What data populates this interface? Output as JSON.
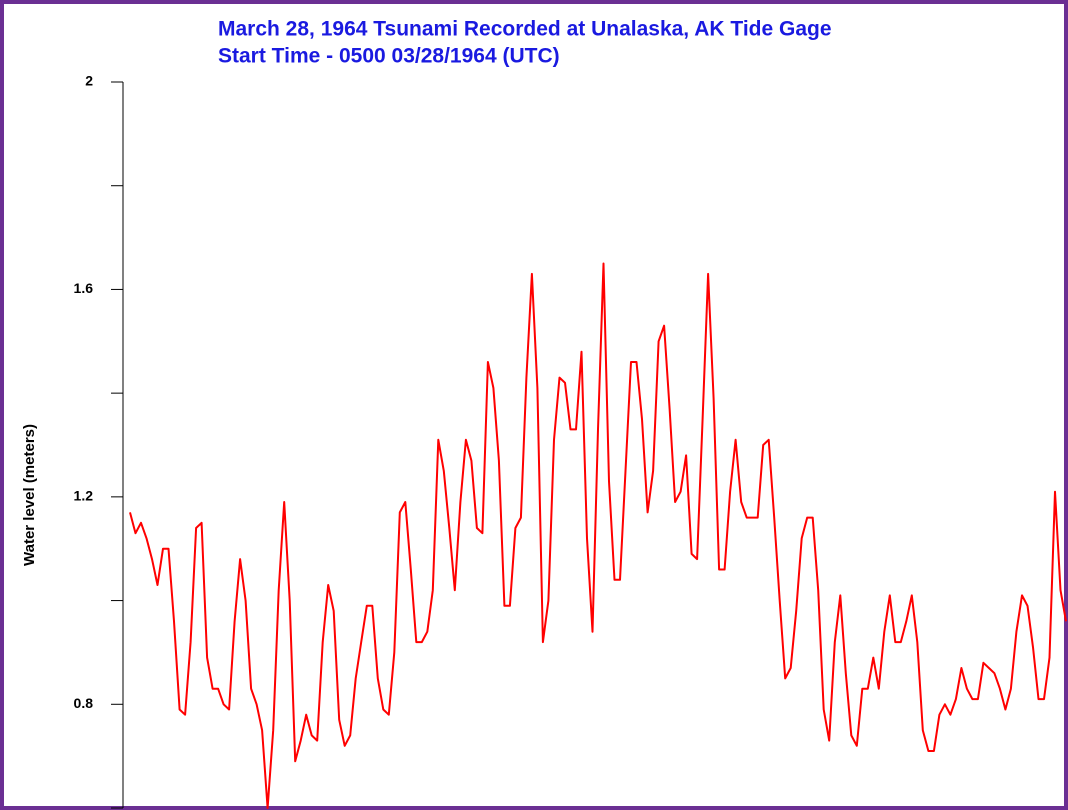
{
  "chart_data": {
    "type": "line",
    "title": "March 28, 1964 Tsunami Recorded at Unalaska, AK Tide Gage",
    "subtitle": "Start Time - 0500 03/28/1964 (UTC)",
    "y_label": "Water level (meters)",
    "ylim": [
      0.6,
      2
    ],
    "yticks": [
      0.8,
      1.2,
      1.6,
      2
    ],
    "yminorticks": [
      0.6,
      1.0,
      1.4,
      1.8
    ],
    "series": [
      {
        "color": "#ff0000",
        "values": [
          1.17,
          1.13,
          1.15,
          1.12,
          1.08,
          1.03,
          1.1,
          1.1,
          0.96,
          0.79,
          0.78,
          0.92,
          1.14,
          1.15,
          0.89,
          0.83,
          0.83,
          0.8,
          0.79,
          0.96,
          1.08,
          1.0,
          0.83,
          0.8,
          0.75,
          0.6,
          0.75,
          1.02,
          1.19,
          1.0,
          0.69,
          0.73,
          0.78,
          0.74,
          0.73,
          0.92,
          1.03,
          0.98,
          0.77,
          0.72,
          0.74,
          0.85,
          0.92,
          0.99,
          0.99,
          0.85,
          0.79,
          0.78,
          0.9,
          1.17,
          1.19,
          1.06,
          0.92,
          0.92,
          0.94,
          1.02,
          1.31,
          1.25,
          1.14,
          1.02,
          1.19,
          1.31,
          1.27,
          1.14,
          1.13,
          1.46,
          1.41,
          1.27,
          0.99,
          0.99,
          1.14,
          1.16,
          1.43,
          1.63,
          1.41,
          0.92,
          1.0,
          1.31,
          1.43,
          1.42,
          1.33,
          1.33,
          1.48,
          1.12,
          0.94,
          1.33,
          1.65,
          1.23,
          1.04,
          1.04,
          1.25,
          1.46,
          1.46,
          1.35,
          1.17,
          1.25,
          1.5,
          1.53,
          1.37,
          1.19,
          1.21,
          1.28,
          1.09,
          1.08,
          1.35,
          1.63,
          1.39,
          1.06,
          1.06,
          1.21,
          1.31,
          1.19,
          1.16,
          1.16,
          1.16,
          1.3,
          1.31,
          1.16,
          1.0,
          0.85,
          0.87,
          0.98,
          1.12,
          1.16,
          1.16,
          1.02,
          0.79,
          0.73,
          0.92,
          1.01,
          0.86,
          0.74,
          0.72,
          0.83,
          0.83,
          0.89,
          0.83,
          0.94,
          1.01,
          0.92,
          0.92,
          0.96,
          1.01,
          0.92,
          0.75,
          0.71,
          0.71,
          0.78,
          0.8,
          0.78,
          0.81,
          0.87,
          0.83,
          0.81,
          0.81,
          0.88,
          0.87,
          0.86,
          0.83,
          0.79,
          0.83,
          0.94,
          1.01,
          0.99,
          0.91,
          0.81,
          0.81,
          0.89,
          1.21,
          1.02,
          0.96
        ]
      }
    ]
  }
}
